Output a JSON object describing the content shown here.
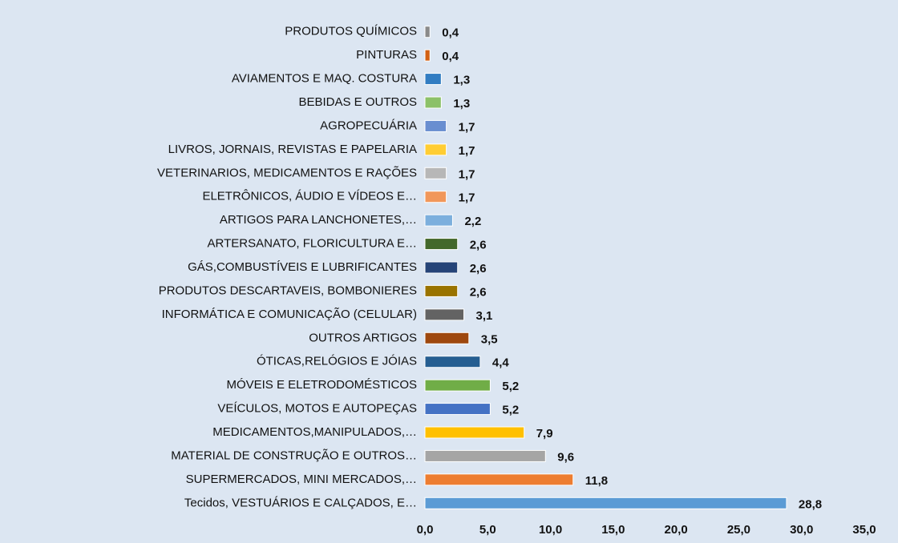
{
  "chart_data": {
    "type": "barh",
    "categories": [
      "PRODUTOS QUÍMICOS",
      "PINTURAS",
      "AVIAMENTOS E MAQ. COSTURA",
      "BEBIDAS E OUTROS",
      "AGROPECUÁRIA",
      "LIVROS, JORNAIS, REVISTAS E PAPELARIA",
      "VETERINARIOS, MEDICAMENTOS E RAÇÕES",
      "ELETRÔNICOS, ÁUDIO E VÍDEOS E…",
      "ARTIGOS PARA LANCHONETES,…",
      "ARTERSANATO, FLORICULTURA E…",
      "GÁS,COMBUSTÍVEIS E LUBRIFICANTES",
      "PRODUTOS DESCARTAVEIS, BOMBONIERES",
      "INFORMÁTICA E COMUNICAÇÃO (CELULAR)",
      "OUTROS ARTIGOS",
      "ÓTICAS,RELÓGIOS E JÓIAS",
      "MÓVEIS E ELETRODOMÉSTICOS",
      "VEÍCULOS, MOTOS E AUTOPEÇAS",
      "MEDICAMENTOS,MANIPULADOS,…",
      "MATERIAL DE CONSTRUÇÃO E OUTROS…",
      "SUPERMERCADOS, MINI MERCADOS,…",
      "Tecidos, VESTUÁRIOS E CALÇADOS, E…"
    ],
    "values": [
      0.4,
      0.4,
      1.3,
      1.3,
      1.7,
      1.7,
      1.7,
      1.7,
      2.2,
      2.6,
      2.6,
      2.6,
      3.1,
      3.5,
      4.4,
      5.2,
      5.2,
      7.9,
      9.6,
      11.8,
      28.8
    ],
    "value_labels": [
      "0,4",
      "0,4",
      "1,3",
      "1,3",
      "1,7",
      "1,7",
      "1,7",
      "1,7",
      "2,2",
      "2,6",
      "2,6",
      "2,6",
      "3,1",
      "3,5",
      "4,4",
      "5,2",
      "5,2",
      "7,9",
      "9,6",
      "11,8",
      "28,8"
    ],
    "colors": [
      "#8a8a8a",
      "#d26012",
      "#327dc2",
      "#8cc168",
      "#698ed0",
      "#ffcd33",
      "#b7b7b7",
      "#f1975a",
      "#7cafdd",
      "#43682b",
      "#264478",
      "#997300",
      "#636363",
      "#9e480e",
      "#255e91",
      "#70ad47",
      "#4472c4",
      "#ffc000",
      "#a5a5a5",
      "#ed7d31",
      "#5b9bd5"
    ],
    "xlim": [
      0,
      35
    ],
    "xticks": [
      {
        "value": 0,
        "label": "0,0"
      },
      {
        "value": 5,
        "label": "5,0"
      },
      {
        "value": 10,
        "label": "10,0"
      },
      {
        "value": 15,
        "label": "15,0"
      },
      {
        "value": 20,
        "label": "20,0"
      },
      {
        "value": 25,
        "label": "25,0"
      },
      {
        "value": 30,
        "label": "30,0"
      },
      {
        "value": 35,
        "label": "35,0"
      }
    ]
  }
}
